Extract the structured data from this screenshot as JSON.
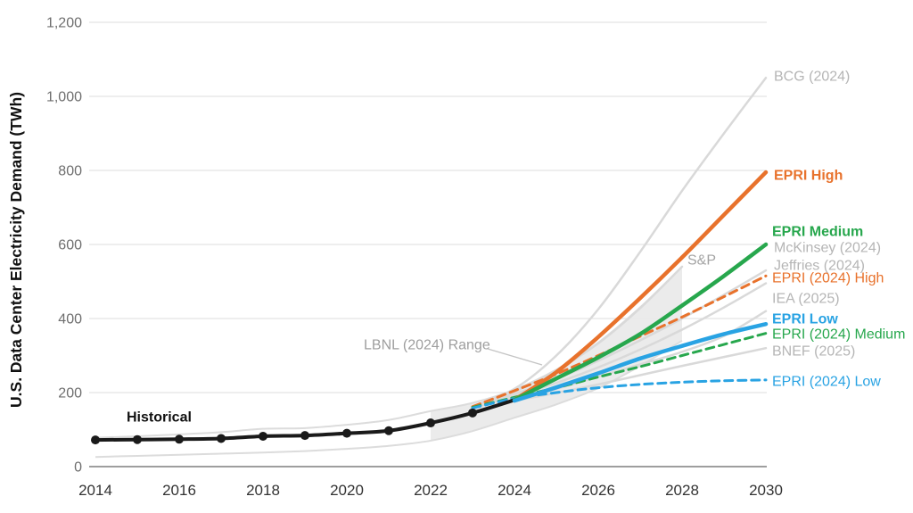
{
  "chart_data": {
    "type": "line",
    "title": "",
    "xlabel": "",
    "ylabel": "U.S. Data Center Electricity Demand (TWh)",
    "x_range": [
      2014,
      2030
    ],
    "y_range": [
      0,
      1200
    ],
    "grid": "horizontal",
    "legend_position": "inline-right-labels",
    "y_ticks": [
      {
        "value": 0,
        "label": "0"
      },
      {
        "value": 200,
        "label": "200"
      },
      {
        "value": 400,
        "label": "400"
      },
      {
        "value": 600,
        "label": "600"
      },
      {
        "value": 800,
        "label": "800"
      },
      {
        "value": 1000,
        "label": "1,000"
      },
      {
        "value": 1200,
        "label": "1,200"
      }
    ],
    "x_ticks": [
      {
        "value": 2014,
        "label": "2014"
      },
      {
        "value": 2016,
        "label": "2016"
      },
      {
        "value": 2018,
        "label": "2018"
      },
      {
        "value": 2020,
        "label": "2020"
      },
      {
        "value": 2022,
        "label": "2022"
      },
      {
        "value": 2024,
        "label": "2024"
      },
      {
        "value": 2026,
        "label": "2026"
      },
      {
        "value": 2028,
        "label": "2028"
      },
      {
        "value": 2030,
        "label": "2030"
      }
    ],
    "band": {
      "id": "lbnl-range",
      "label": "LBNL (2024) Range",
      "fill": "#e9e9e9",
      "edge_color": "#dcdcdc",
      "fill_from": 2022,
      "top": [
        [
          2014,
          78
        ],
        [
          2015,
          82
        ],
        [
          2016,
          87
        ],
        [
          2017,
          93
        ],
        [
          2018,
          102
        ],
        [
          2019,
          104
        ],
        [
          2020,
          113
        ],
        [
          2021,
          126
        ],
        [
          2022,
          150
        ],
        [
          2023,
          172
        ],
        [
          2024,
          208
        ],
        [
          2025,
          262
        ],
        [
          2026,
          335
        ],
        [
          2027,
          430
        ],
        [
          2028,
          540
        ]
      ],
      "bottom": [
        [
          2014,
          26
        ],
        [
          2015,
          29
        ],
        [
          2016,
          32
        ],
        [
          2017,
          35
        ],
        [
          2018,
          38
        ],
        [
          2019,
          42
        ],
        [
          2020,
          48
        ],
        [
          2021,
          56
        ],
        [
          2022,
          70
        ],
        [
          2023,
          96
        ],
        [
          2024,
          132
        ],
        [
          2025,
          168
        ],
        [
          2026,
          212
        ],
        [
          2027,
          272
        ],
        [
          2028,
          340
        ]
      ]
    },
    "series": [
      {
        "id": "bcg",
        "name": "BCG (2024)",
        "color": "#d9d9d9",
        "style": "solid",
        "width": 2.5,
        "markers": false,
        "label": {
          "color": "#b5b5b5",
          "bold": false
        },
        "data": [
          [
            2023,
            162
          ],
          [
            2024,
            210
          ],
          [
            2025,
            300
          ],
          [
            2026,
            425
          ],
          [
            2027,
            580
          ],
          [
            2028,
            745
          ],
          [
            2029,
            900
          ],
          [
            2030,
            1050
          ]
        ]
      },
      {
        "id": "mckinsey",
        "name": "McKinsey (2024)",
        "color": "#d9d9d9",
        "style": "solid",
        "width": 2.5,
        "markers": false,
        "label": {
          "color": "#b5b5b5",
          "bold": false
        },
        "data": [
          [
            2023,
            160
          ],
          [
            2024,
            196
          ],
          [
            2025,
            237
          ],
          [
            2026,
            286
          ],
          [
            2027,
            341
          ],
          [
            2028,
            400
          ],
          [
            2029,
            464
          ],
          [
            2030,
            530
          ]
        ]
      },
      {
        "id": "jeffries",
        "name": "Jeffries (2024)",
        "color": "#d9d9d9",
        "style": "solid",
        "width": 2.5,
        "markers": false,
        "label": {
          "color": "#b5b5b5",
          "bold": false
        },
        "data": [
          [
            2023,
            158
          ],
          [
            2024,
            190
          ],
          [
            2025,
            226
          ],
          [
            2026,
            268
          ],
          [
            2027,
            316
          ],
          [
            2028,
            370
          ],
          [
            2029,
            430
          ],
          [
            2030,
            495
          ]
        ]
      },
      {
        "id": "iea",
        "name": "IEA (2025)",
        "color": "#d9d9d9",
        "style": "solid",
        "width": 2.5,
        "markers": false,
        "label": {
          "color": "#b5b5b5",
          "bold": false
        },
        "data": [
          [
            2024,
            180
          ],
          [
            2025,
            210
          ],
          [
            2026,
            243
          ],
          [
            2027,
            276
          ],
          [
            2028,
            310
          ],
          [
            2029,
            353
          ],
          [
            2030,
            420
          ]
        ]
      },
      {
        "id": "bnef",
        "name": "BNEF (2025)",
        "color": "#d9d9d9",
        "style": "solid",
        "width": 2.5,
        "markers": false,
        "label": {
          "color": "#b5b5b5",
          "bold": false
        },
        "data": [
          [
            2024,
            178
          ],
          [
            2025,
            199
          ],
          [
            2026,
            222
          ],
          [
            2027,
            247
          ],
          [
            2028,
            272
          ],
          [
            2029,
            296
          ],
          [
            2030,
            320
          ]
        ]
      },
      {
        "id": "sp",
        "name": "S&P",
        "color": "#d9d9d9",
        "style": "solid",
        "width": 2.5,
        "markers": false,
        "label": {
          "color": "#a3a3a3",
          "bold": false
        },
        "data": [
          [
            2023,
            161
          ],
          [
            2024,
            202
          ],
          [
            2025,
            260
          ],
          [
            2026,
            333
          ],
          [
            2027,
            428
          ],
          [
            2028,
            540
          ]
        ]
      },
      {
        "id": "epri24-high",
        "name": "EPRI (2024) High",
        "color": "#e8722c",
        "style": "dashed",
        "width": 3,
        "markers": false,
        "label": {
          "color": "#e8722c",
          "bold": false
        },
        "data": [
          [
            2023,
            162
          ],
          [
            2024,
            205
          ],
          [
            2025,
            250
          ],
          [
            2026,
            300
          ],
          [
            2027,
            352
          ],
          [
            2028,
            404
          ],
          [
            2029,
            459
          ],
          [
            2030,
            515
          ]
        ]
      },
      {
        "id": "epri24-medium",
        "name": "EPRI (2024) Medium",
        "color": "#27a74d",
        "style": "dashed",
        "width": 3,
        "markers": false,
        "label": {
          "color": "#27a74d",
          "bold": false
        },
        "data": [
          [
            2023,
            160
          ],
          [
            2024,
            187
          ],
          [
            2025,
            213
          ],
          [
            2026,
            242
          ],
          [
            2027,
            270
          ],
          [
            2028,
            300
          ],
          [
            2029,
            330
          ],
          [
            2030,
            360
          ]
        ]
      },
      {
        "id": "epri24-low",
        "name": "EPRI (2024) Low",
        "color": "#29a3e3",
        "style": "dashed",
        "width": 3,
        "markers": false,
        "label": {
          "color": "#29a3e3",
          "bold": false
        },
        "data": [
          [
            2023,
            158
          ],
          [
            2024,
            184
          ],
          [
            2025,
            200
          ],
          [
            2026,
            213
          ],
          [
            2027,
            222
          ],
          [
            2028,
            228
          ],
          [
            2029,
            232
          ],
          [
            2030,
            234
          ]
        ]
      },
      {
        "id": "historical",
        "name": "Historical",
        "color": "#1a1a1a",
        "style": "solid",
        "width": 4,
        "markers": true,
        "label": {
          "color": "#111111",
          "bold": true
        },
        "data": [
          [
            2014,
            72
          ],
          [
            2015,
            73
          ],
          [
            2016,
            74
          ],
          [
            2017,
            76
          ],
          [
            2018,
            82
          ],
          [
            2019,
            84
          ],
          [
            2020,
            90
          ],
          [
            2021,
            97
          ],
          [
            2022,
            118
          ],
          [
            2023,
            145
          ],
          [
            2024,
            180
          ]
        ]
      },
      {
        "id": "epri-high",
        "name": "EPRI High",
        "color": "#e8722c",
        "style": "solid",
        "width": 4.5,
        "markers": false,
        "label": {
          "color": "#e8722c",
          "bold": true
        },
        "data": [
          [
            2024,
            180
          ],
          [
            2025,
            255
          ],
          [
            2026,
            350
          ],
          [
            2027,
            455
          ],
          [
            2028,
            565
          ],
          [
            2029,
            680
          ],
          [
            2030,
            795
          ]
        ]
      },
      {
        "id": "epri-medium",
        "name": "EPRI Medium",
        "color": "#27a74d",
        "style": "solid",
        "width": 4.5,
        "markers": false,
        "label": {
          "color": "#27a74d",
          "bold": true
        },
        "data": [
          [
            2024,
            180
          ],
          [
            2025,
            238
          ],
          [
            2026,
            295
          ],
          [
            2027,
            358
          ],
          [
            2028,
            435
          ],
          [
            2029,
            515
          ],
          [
            2030,
            600
          ]
        ]
      },
      {
        "id": "epri-low",
        "name": "EPRI Low",
        "color": "#29a3e3",
        "style": "solid",
        "width": 4.5,
        "markers": false,
        "label": {
          "color": "#29a3e3",
          "bold": true
        },
        "data": [
          [
            2024,
            178
          ],
          [
            2025,
            214
          ],
          [
            2026,
            252
          ],
          [
            2027,
            292
          ],
          [
            2028,
            326
          ],
          [
            2029,
            358
          ],
          [
            2030,
            385
          ]
        ]
      }
    ],
    "annotations": [
      {
        "id": "lbnl-label",
        "text": "LBNL (2024) Range",
        "color": "#9e9e9e",
        "callout": true
      },
      {
        "id": "sp-label",
        "text": "S&P",
        "color": "#a3a3a3",
        "callout": false
      }
    ]
  }
}
